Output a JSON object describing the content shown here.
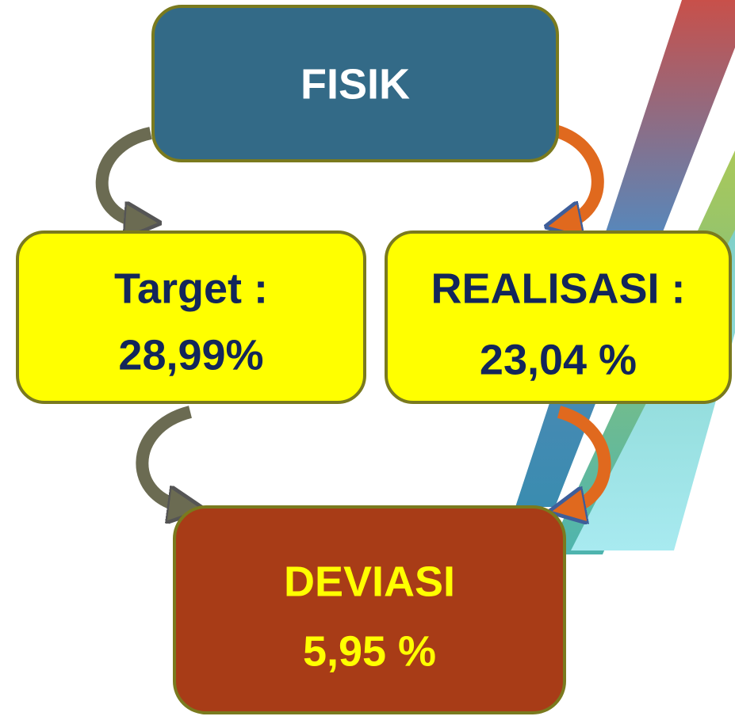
{
  "nodes": [
    {
      "lines": [
        "FISIK"
      ]
    },
    {
      "lines": [
        "Target :",
        "28,99%"
      ]
    },
    {
      "lines": [
        "REALISASI :",
        "23,04 %"
      ]
    },
    {
      "lines": [
        "DEVIASI",
        "5,95 %"
      ]
    }
  ]
}
